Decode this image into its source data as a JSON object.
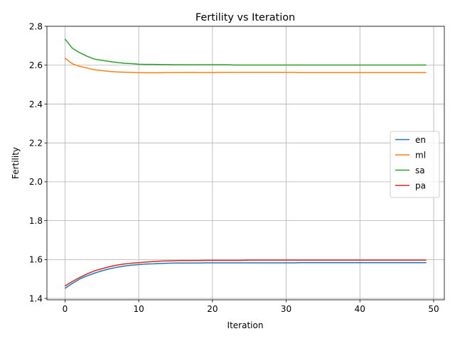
{
  "chart_data": {
    "type": "line",
    "title": "Fertility vs Iteration",
    "xlabel": "Iteration",
    "ylabel": "Fertility",
    "xlim": [
      -2.45,
      51.45
    ],
    "ylim": [
      1.393,
      2.8
    ],
    "xticks": [
      0,
      10,
      20,
      30,
      40,
      50
    ],
    "yticks": [
      1.4,
      1.6,
      1.8,
      2.0,
      2.2,
      2.4,
      2.6,
      2.8
    ],
    "grid": true,
    "legend_position": "center-right",
    "x": [
      0,
      1,
      2,
      3,
      4,
      5,
      6,
      7,
      8,
      9,
      10,
      11,
      12,
      13,
      14,
      15,
      16,
      17,
      18,
      19,
      20,
      21,
      22,
      23,
      24,
      25,
      26,
      27,
      28,
      29,
      30,
      31,
      32,
      33,
      34,
      35,
      36,
      37,
      38,
      39,
      40,
      41,
      42,
      43,
      44,
      45,
      46,
      47,
      48,
      49
    ],
    "series": [
      {
        "name": "en",
        "color": "#1f77b4",
        "values": [
          1.452,
          1.477,
          1.5,
          1.516,
          1.53,
          1.542,
          1.552,
          1.56,
          1.566,
          1.571,
          1.574,
          1.577,
          1.578,
          1.58,
          1.581,
          1.582,
          1.582,
          1.582,
          1.582,
          1.583,
          1.583,
          1.583,
          1.583,
          1.583,
          1.583,
          1.583,
          1.583,
          1.583,
          1.583,
          1.583,
          1.583,
          1.583,
          1.584,
          1.584,
          1.584,
          1.584,
          1.584,
          1.584,
          1.584,
          1.584,
          1.584,
          1.584,
          1.584,
          1.584,
          1.584,
          1.584,
          1.584,
          1.584,
          1.584,
          1.584
        ]
      },
      {
        "name": "ml",
        "color": "#ff7f0e",
        "values": [
          2.636,
          2.607,
          2.594,
          2.585,
          2.576,
          2.572,
          2.568,
          2.565,
          2.564,
          2.563,
          2.561,
          2.561,
          2.561,
          2.561,
          2.562,
          2.562,
          2.562,
          2.563,
          2.562,
          2.562,
          2.562,
          2.563,
          2.563,
          2.563,
          2.563,
          2.563,
          2.563,
          2.563,
          2.563,
          2.563,
          2.563,
          2.563,
          2.562,
          2.562,
          2.562,
          2.562,
          2.562,
          2.562,
          2.562,
          2.562,
          2.562,
          2.562,
          2.562,
          2.562,
          2.562,
          2.562,
          2.562,
          2.562,
          2.562,
          2.562
        ]
      },
      {
        "name": "sa",
        "color": "#2ca02c",
        "values": [
          2.735,
          2.687,
          2.664,
          2.646,
          2.631,
          2.625,
          2.619,
          2.614,
          2.61,
          2.608,
          2.605,
          2.604,
          2.604,
          2.603,
          2.603,
          2.602,
          2.602,
          2.602,
          2.602,
          2.602,
          2.602,
          2.602,
          2.602,
          2.601,
          2.601,
          2.601,
          2.601,
          2.601,
          2.601,
          2.601,
          2.601,
          2.601,
          2.601,
          2.601,
          2.601,
          2.601,
          2.601,
          2.601,
          2.601,
          2.601,
          2.601,
          2.601,
          2.601,
          2.601,
          2.601,
          2.601,
          2.601,
          2.601,
          2.601,
          2.601
        ]
      },
      {
        "name": "pa",
        "color": "#d62728",
        "values": [
          1.464,
          1.487,
          1.508,
          1.526,
          1.542,
          1.553,
          1.563,
          1.571,
          1.577,
          1.581,
          1.584,
          1.587,
          1.59,
          1.592,
          1.593,
          1.594,
          1.595,
          1.595,
          1.595,
          1.596,
          1.596,
          1.596,
          1.596,
          1.596,
          1.596,
          1.597,
          1.597,
          1.597,
          1.597,
          1.597,
          1.597,
          1.597,
          1.597,
          1.597,
          1.597,
          1.597,
          1.597,
          1.597,
          1.597,
          1.597,
          1.597,
          1.597,
          1.597,
          1.597,
          1.597,
          1.597,
          1.597,
          1.597,
          1.597,
          1.597
        ]
      }
    ]
  }
}
